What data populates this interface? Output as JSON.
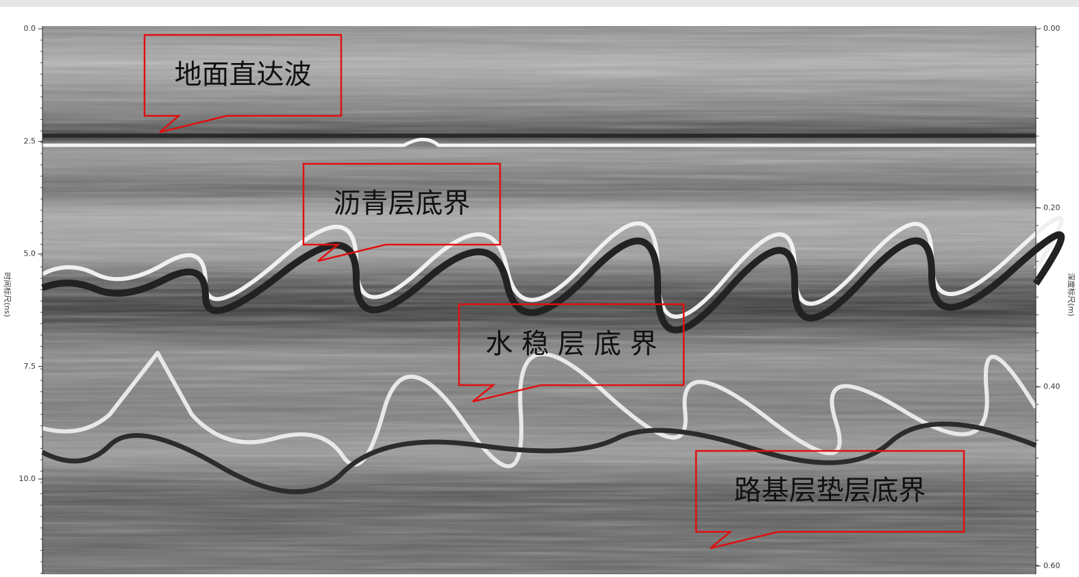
{
  "left_axis": {
    "label": "时间标尺(ns)",
    "ticks": [
      {
        "value": 0,
        "label": "0.0"
      },
      {
        "value": 2.5,
        "label": "2.5"
      },
      {
        "value": 5,
        "label": "5.0"
      },
      {
        "value": 7.5,
        "label": "7.5"
      },
      {
        "value": 10,
        "label": "10.0"
      }
    ]
  },
  "right_axis": {
    "label": "深度标尺(m)",
    "ticks": [
      {
        "value": 0,
        "label": "0.00"
      },
      {
        "value": 0.2,
        "label": "0.20"
      },
      {
        "value": 0.4,
        "label": "0.40"
      },
      {
        "value": 0.6,
        "label": "0.60"
      }
    ]
  },
  "callouts": [
    {
      "label": "地面直达波"
    },
    {
      "label": "沥青层底界"
    },
    {
      "label": "水 稳 层 底 界"
    },
    {
      "label": "路基层垫层底界"
    }
  ]
}
